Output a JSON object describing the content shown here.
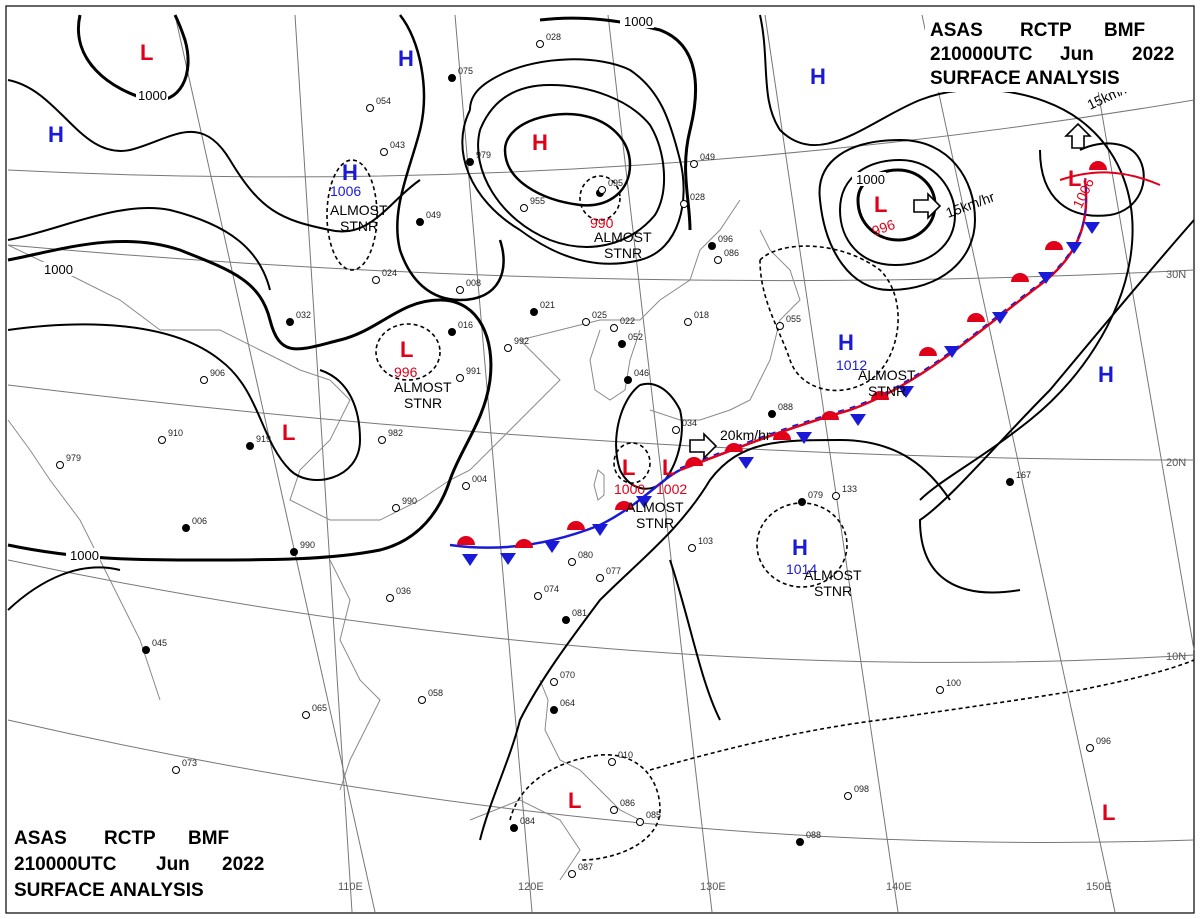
{
  "header": {
    "title_line1": [
      "ASAS",
      "RCTP",
      "BMF"
    ],
    "title_line2": [
      "210000UTC",
      "Jun",
      "2022"
    ],
    "title_line3": "SURFACE ANALYSIS"
  },
  "colors": {
    "high": "#1a1ad6",
    "low": "#e0001a",
    "isobar": "#000000",
    "front_cold": "#1a1ad6",
    "front_warm": "#e0001a",
    "graticule": "#777777",
    "coast": "#8a8a8a"
  },
  "latitude_labels": [
    "30N",
    "20N",
    "10N"
  ],
  "longitude_labels": [
    "110E",
    "120E",
    "130E",
    "140E",
    "150E"
  ],
  "isobar_labels": [
    "1000",
    "1000",
    "1000",
    "1000",
    "1000"
  ],
  "pressure_centers": [
    {
      "type": "H",
      "value": ""
    },
    {
      "type": "L",
      "value": ""
    },
    {
      "type": "H",
      "value": ""
    },
    {
      "type": "H",
      "value": "1006"
    },
    {
      "type": "L",
      "value": "990"
    },
    {
      "type": "H",
      "value": ""
    },
    {
      "type": "L",
      "value": "996"
    },
    {
      "type": "L",
      "value": "1006"
    },
    {
      "type": "L",
      "value": "996"
    },
    {
      "type": "H",
      "value": "1012"
    },
    {
      "type": "H",
      "value": ""
    },
    {
      "type": "L",
      "value": ""
    },
    {
      "type": "L",
      "value": "1000"
    },
    {
      "type": "L",
      "value": "1002"
    },
    {
      "type": "H",
      "value": "1014"
    },
    {
      "type": "L",
      "value": ""
    },
    {
      "type": "L",
      "value": ""
    }
  ],
  "status_labels": [
    "ALMOST STNR",
    "ALMOST STNR",
    "ALMOST STNR",
    "ALMOST STNR",
    "ALMOST STNR",
    "ALMOST STNR"
  ],
  "motion_labels": [
    "15km/hr",
    "15km/hr",
    "20km/hr"
  ],
  "station_values": [
    "075",
    "054",
    "043",
    "049",
    "024",
    "008",
    "016",
    "991",
    "992",
    "021",
    "025",
    "034",
    "032",
    "906",
    "910",
    "919",
    "979",
    "982",
    "006",
    "004",
    "990",
    "990",
    "080",
    "074",
    "081",
    "077",
    "070",
    "064",
    "058",
    "065",
    "045",
    "073",
    "010",
    "088",
    "086",
    "085",
    "084",
    "087",
    "098",
    "088",
    "096",
    "100",
    "167",
    "133",
    "103",
    "079",
    "028",
    "036",
    "046",
    "022",
    "086",
    "052",
    "095",
    "955",
    "979",
    "028",
    "049",
    "096",
    "055",
    "018"
  ]
}
